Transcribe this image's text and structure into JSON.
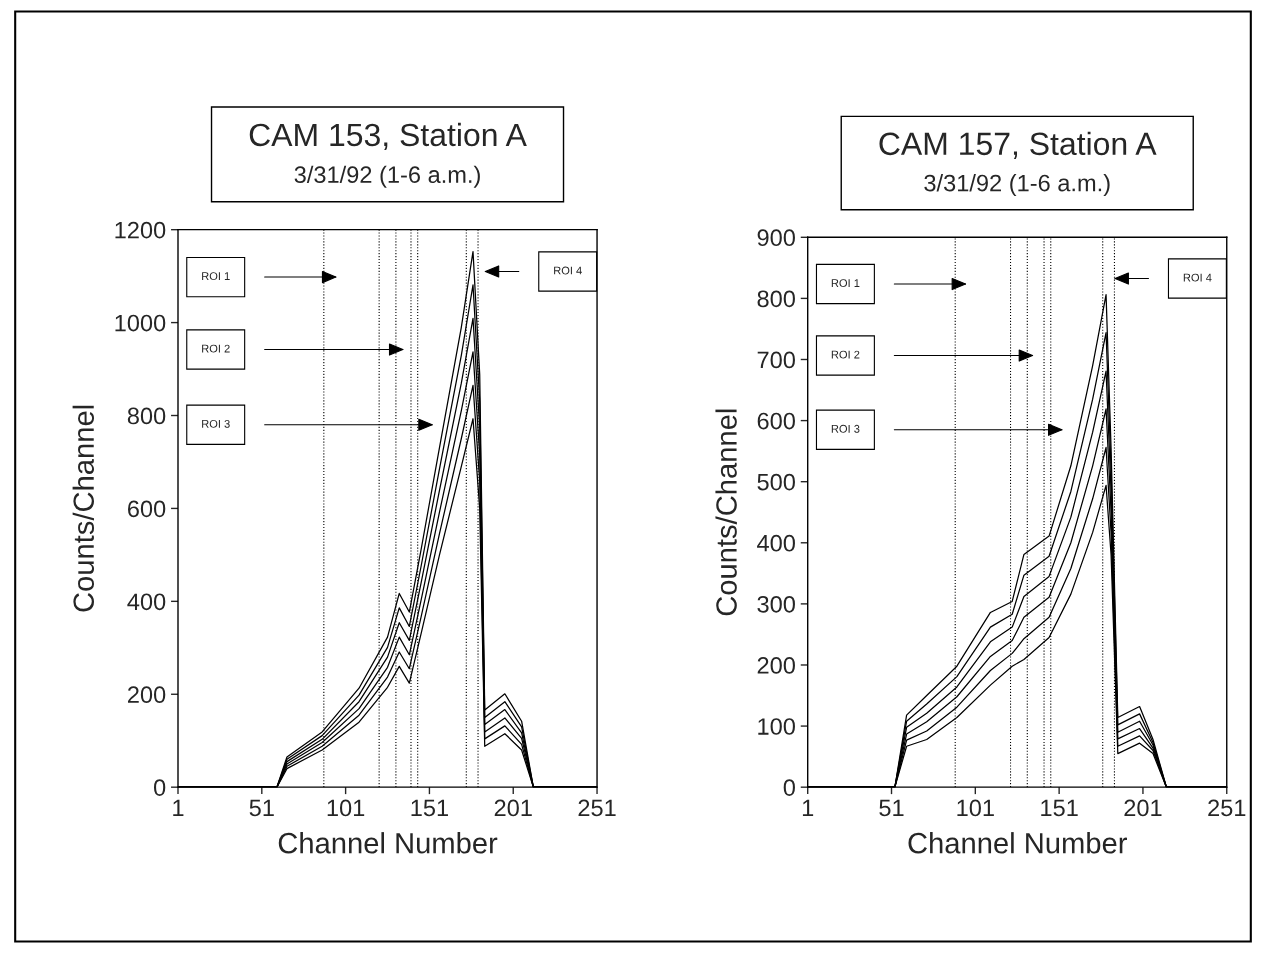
{
  "chart_data": [
    {
      "type": "line",
      "title": "CAM 153, Station A",
      "subtitle": "3/31/92 (1-6 a.m.)",
      "xlabel": "Channel Number",
      "ylabel": "Counts/Channel",
      "xlim": [
        1,
        251
      ],
      "xticks": [
        1,
        51,
        101,
        151,
        201,
        251
      ],
      "ylim": [
        0,
        1200
      ],
      "yticks": [
        0,
        200,
        400,
        600,
        800,
        1000,
        1200
      ],
      "grid": false,
      "legend": false,
      "marker": "none",
      "line_style": "solid",
      "x": [
        1,
        60,
        66,
        87,
        109,
        126,
        133,
        139,
        146,
        157,
        170,
        177,
        181,
        184,
        196,
        206,
        213,
        251
      ],
      "series": [
        {
          "color": "#000000",
          "values": [
            0,
            0,
            65,
            119,
            213,
            323,
            417,
            377,
            511,
            731,
            989,
            1153,
            888,
            166,
            201,
            142,
            0,
            0
          ]
        },
        {
          "color": "#000000",
          "values": [
            0,
            0,
            60,
            111,
            198,
            301,
            386,
            346,
            475,
            685,
            929,
            1081,
            830,
            150,
            184,
            130,
            0,
            0
          ]
        },
        {
          "color": "#000000",
          "values": [
            0,
            0,
            55,
            103,
            184,
            280,
            354,
            316,
            439,
            639,
            869,
            1009,
            773,
            135,
            167,
            117,
            0,
            0
          ]
        },
        {
          "color": "#000000",
          "values": [
            0,
            0,
            50,
            96,
            169,
            258,
            323,
            285,
            402,
            592,
            810,
            937,
            715,
            119,
            149,
            105,
            0,
            0
          ]
        },
        {
          "color": "#000000",
          "values": [
            0,
            0,
            45,
            88,
            155,
            237,
            291,
            255,
            366,
            546,
            750,
            865,
            658,
            104,
            132,
            92,
            0,
            0
          ]
        },
        {
          "color": "#000000",
          "values": [
            0,
            0,
            40,
            80,
            140,
            215,
            260,
            224,
            330,
            500,
            690,
            793,
            600,
            88,
            115,
            80,
            0,
            0
          ]
        }
      ],
      "ref_lines": [
        {
          "axis": "x",
          "value": 88,
          "line_style": "dotted"
        },
        {
          "axis": "x",
          "value": 121,
          "line_style": "dotted"
        },
        {
          "axis": "x",
          "value": 131,
          "line_style": "dotted"
        },
        {
          "axis": "x",
          "value": 140,
          "line_style": "dotted"
        },
        {
          "axis": "x",
          "value": 144,
          "line_style": "dotted"
        },
        {
          "axis": "x",
          "value": 173,
          "line_style": "dotted"
        },
        {
          "axis": "x",
          "value": 180,
          "line_style": "dotted"
        }
      ],
      "annotations": [
        "ROI 1",
        "ROI 2",
        "ROI 3",
        "ROI 4"
      ]
    },
    {
      "type": "line",
      "title": "CAM 157, Station A",
      "subtitle": "3/31/92 (1-6 a.m.)",
      "xlabel": "Channel Number",
      "ylabel": "Counts/Channel",
      "xlim": [
        1,
        251
      ],
      "xticks": [
        1,
        51,
        101,
        151,
        201,
        251
      ],
      "ylim": [
        0,
        900
      ],
      "yticks": [
        0,
        100,
        200,
        300,
        400,
        500,
        600,
        700,
        800,
        900
      ],
      "grid": false,
      "legend": false,
      "marker": "none",
      "line_style": "solid",
      "x": [
        1,
        53,
        60,
        72,
        90,
        110,
        123,
        130,
        145,
        158,
        171,
        179,
        182,
        186,
        199,
        207,
        215,
        251
      ],
      "series": [
        {
          "color": "#000000",
          "values": [
            0,
            0,
            118,
            150,
            198,
            286,
            304,
            381,
            411,
            526,
            690,
            806,
            554,
            114,
            132,
            78,
            0,
            0
          ]
        },
        {
          "color": "#000000",
          "values": [
            0,
            0,
            108,
            136,
            181,
            262,
            283,
            347,
            378,
            484,
            635,
            744,
            519,
            102,
            120,
            73,
            0,
            0
          ]
        },
        {
          "color": "#000000",
          "values": [
            0,
            0,
            98,
            121,
            164,
            238,
            262,
            312,
            345,
            442,
            581,
            681,
            484,
            90,
            108,
            69,
            0,
            0
          ]
        },
        {
          "color": "#000000",
          "values": [
            0,
            0,
            87,
            107,
            148,
            214,
            240,
            278,
            311,
            400,
            526,
            619,
            450,
            79,
            96,
            64,
            0,
            0
          ]
        },
        {
          "color": "#000000",
          "values": [
            0,
            0,
            77,
            92,
            131,
            191,
            219,
            243,
            278,
            358,
            472,
            556,
            415,
            67,
            84,
            60,
            0,
            0
          ]
        },
        {
          "color": "#000000",
          "values": [
            0,
            0,
            67,
            78,
            114,
            167,
            198,
            209,
            245,
            316,
            417,
            494,
            380,
            55,
            72,
            55,
            0,
            0
          ]
        }
      ],
      "ref_lines": [
        {
          "axis": "x",
          "value": 89,
          "line_style": "dotted"
        },
        {
          "axis": "x",
          "value": 122,
          "line_style": "dotted"
        },
        {
          "axis": "x",
          "value": 132,
          "line_style": "dotted"
        },
        {
          "axis": "x",
          "value": 142,
          "line_style": "dotted"
        },
        {
          "axis": "x",
          "value": 146,
          "line_style": "dotted"
        },
        {
          "axis": "x",
          "value": 177,
          "line_style": "dotted"
        },
        {
          "axis": "x",
          "value": 184,
          "line_style": "dotted"
        }
      ],
      "annotations": [
        "ROI 1",
        "ROI 2",
        "ROI 3",
        "ROI 4"
      ]
    }
  ]
}
